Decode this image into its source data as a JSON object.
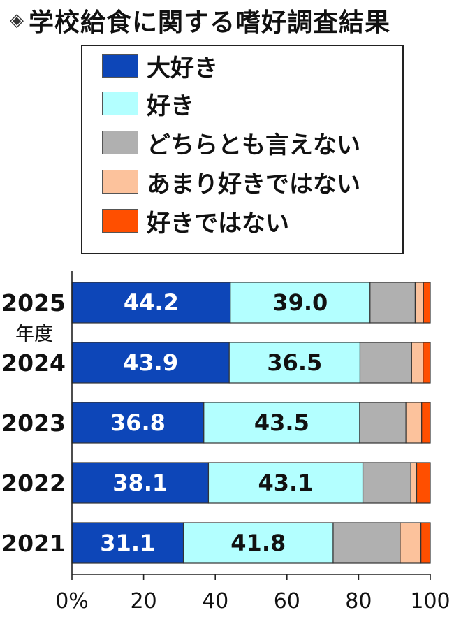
{
  "title": "学校給食に関する嗜好調査結果",
  "title_icon": "diamond-bullet-icon",
  "year_axis_label": "年度",
  "chart_data": {
    "type": "bar",
    "orientation": "horizontal",
    "stacked": true,
    "title": "学校給食に関する嗜好調査結果",
    "categories": [
      "2025",
      "2024",
      "2023",
      "2022",
      "2021"
    ],
    "series": [
      {
        "name": "大好き",
        "color": "#0d46b8",
        "values": [
          44.2,
          43.9,
          36.8,
          38.1,
          31.1
        ]
      },
      {
        "name": "好き",
        "color": "#b3ffff",
        "values": [
          39.0,
          36.5,
          43.5,
          43.1,
          41.8
        ]
      },
      {
        "name": "どちらとも言えない",
        "color": "#b0b0b0",
        "values": [
          12.6,
          14.4,
          12.9,
          13.4,
          18.7
        ]
      },
      {
        "name": "あまり好きではない",
        "color": "#fcc29c",
        "values": [
          2.3,
          3.2,
          4.4,
          1.6,
          5.8
        ]
      },
      {
        "name": "好きではない",
        "color": "#ff4f00",
        "values": [
          1.9,
          2.0,
          2.4,
          3.8,
          2.6
        ]
      }
    ],
    "data_labels": [
      [
        "44.2",
        "39.0"
      ],
      [
        "43.9",
        "36.5"
      ],
      [
        "36.8",
        "43.5"
      ],
      [
        "38.1",
        "43.1"
      ],
      [
        "31.1",
        "41.8"
      ]
    ],
    "xlim": [
      0,
      100
    ],
    "x_ticks": [
      "0%",
      "20",
      "40",
      "60",
      "80",
      "100"
    ],
    "legend_position": "top"
  }
}
